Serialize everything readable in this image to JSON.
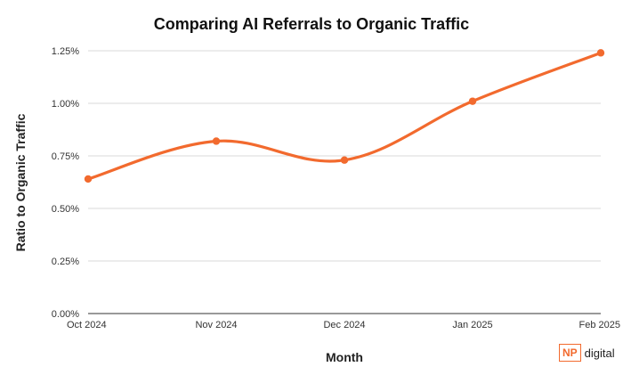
{
  "chart_data": {
    "type": "line",
    "title": "Comparing AI Referrals to Organic Traffic",
    "xlabel": "Month",
    "ylabel": "Ratio to Organic Traffic",
    "categories": [
      "Oct 2024",
      "Nov 2024",
      "Dec 2024",
      "Jan 2025",
      "Feb 2025"
    ],
    "series": [
      {
        "values": [
          0.64,
          0.82,
          0.73,
          1.01,
          1.24
        ],
        "color": "#f26a2e"
      }
    ],
    "ylim": [
      0,
      1.25
    ],
    "yticks": [
      {
        "value": 0,
        "label": "0.00%"
      },
      {
        "value": 0.25,
        "label": "0.25%"
      },
      {
        "value": 0.5,
        "label": "0.50%"
      },
      {
        "value": 0.75,
        "label": "0.75%"
      },
      {
        "value": 1.0,
        "label": "1.00%"
      },
      {
        "value": 1.25,
        "label": "1.25%"
      }
    ],
    "grid": true,
    "legend": "none"
  },
  "brand": {
    "badge": "NP",
    "text": "digital",
    "color": "#f26a2e"
  }
}
